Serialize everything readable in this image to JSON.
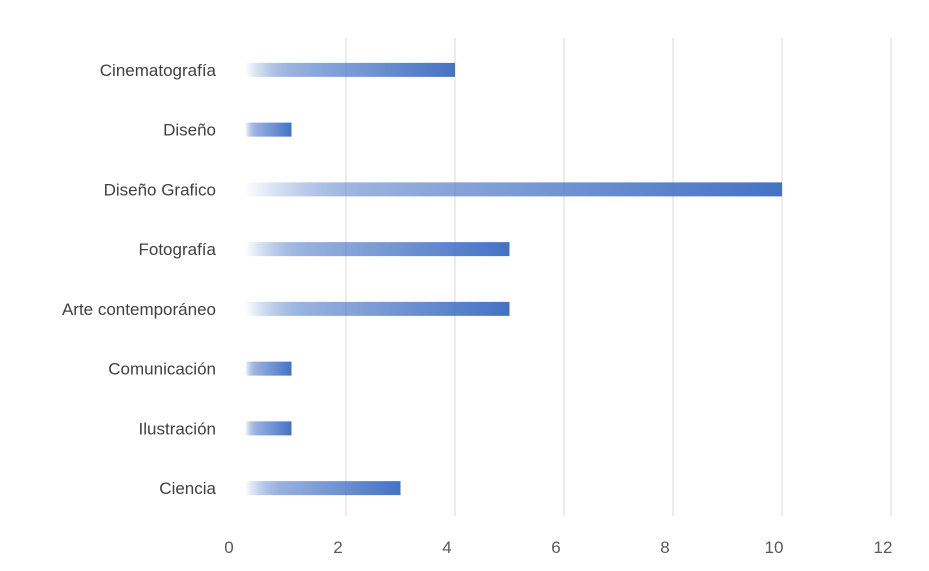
{
  "chart_data": {
    "type": "bar",
    "orientation": "horizontal",
    "title": "",
    "xlabel": "",
    "ylabel": "",
    "categories": [
      "Cinematografía",
      "Diseño",
      "Diseño Grafico",
      "Fotografía",
      "Arte contemporáneo",
      "Comunicación",
      "Ilustración",
      "Ciencia"
    ],
    "values": [
      4,
      1,
      10,
      5,
      5,
      1,
      1,
      3
    ],
    "xlim": [
      0,
      12
    ],
    "xticks": [
      "0",
      "2",
      "4",
      "6",
      "8",
      "10",
      "12"
    ],
    "grid": "vertical",
    "legend": "none",
    "bar_color": "#4472c4",
    "bar_fade_color": "#ffffff"
  }
}
